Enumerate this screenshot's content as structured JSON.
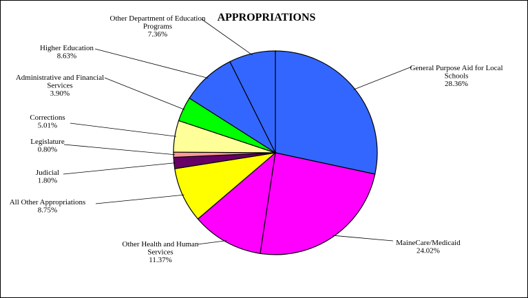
{
  "chart_data": {
    "type": "pie",
    "title": "APPROPRIATIONS",
    "slices": [
      {
        "label": [
          "General Purpose Aid for Local",
          "Schools"
        ],
        "pct": "28.36%",
        "value": 28.36,
        "color": "#3366FF"
      },
      {
        "label": [
          "MaineCare/Medicaid"
        ],
        "pct": "24.02%",
        "value": 24.02,
        "color": "#FF00FF"
      },
      {
        "label": [
          "Other Health and Human",
          "Services"
        ],
        "pct": "11.37%",
        "value": 11.37,
        "color": "#FF00FF"
      },
      {
        "label": [
          "All Other Appropriations"
        ],
        "pct": "8.75%",
        "value": 8.75,
        "color": "#FFFF00"
      },
      {
        "label": [
          "Judicial"
        ],
        "pct": "1.80%",
        "value": 1.8,
        "color": "#660066"
      },
      {
        "label": [
          "Legislature"
        ],
        "pct": "0.80%",
        "value": 0.8,
        "color": "#FF9999"
      },
      {
        "label": [
          "Corrections"
        ],
        "pct": "5.01%",
        "value": 5.01,
        "color": "#FFFF99"
      },
      {
        "label": [
          "Administrative and Financial",
          "Services"
        ],
        "pct": "3.90%",
        "value": 3.9,
        "color": "#00FF00"
      },
      {
        "label": [
          "Higher Education"
        ],
        "pct": "8.63%",
        "value": 8.63,
        "color": "#3366FF"
      },
      {
        "label": [
          "Other Department of Education",
          "Programs"
        ],
        "pct": "7.36%",
        "value": 7.36,
        "color": "#3366FF"
      }
    ]
  }
}
